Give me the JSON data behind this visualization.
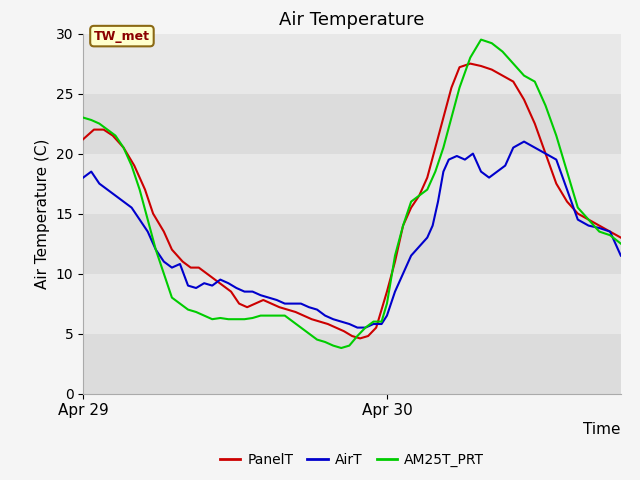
{
  "title": "Air Temperature",
  "ylabel": "Air Temperature (C)",
  "xlabel": "Time",
  "ylim": [
    0,
    30
  ],
  "yticks": [
    0,
    5,
    10,
    15,
    20,
    25,
    30
  ],
  "xtick_labels": [
    "Apr 29",
    "Apr 30"
  ],
  "xtick_positions": [
    0.0,
    0.565
  ],
  "annotation_label": "TW_met",
  "fig_bg_color": "#f5f5f5",
  "plot_bg_color": "#e8e8e8",
  "band_colors": [
    "#dcdcdc",
    "#e8e8e8"
  ],
  "colors": {
    "PanelT": "#cc0000",
    "AirT": "#0000cc",
    "AM25T_PRT": "#00cc00"
  },
  "PanelT_x": [
    0.0,
    0.02,
    0.038,
    0.055,
    0.075,
    0.095,
    0.115,
    0.13,
    0.15,
    0.165,
    0.185,
    0.2,
    0.215,
    0.23,
    0.245,
    0.26,
    0.275,
    0.29,
    0.305,
    0.32,
    0.335,
    0.35,
    0.365,
    0.38,
    0.395,
    0.41,
    0.425,
    0.44,
    0.455,
    0.47,
    0.485,
    0.5,
    0.515,
    0.53,
    0.545,
    0.565,
    0.58,
    0.595,
    0.61,
    0.625,
    0.64,
    0.655,
    0.67,
    0.685,
    0.7,
    0.72,
    0.74,
    0.76,
    0.78,
    0.8,
    0.82,
    0.84,
    0.86,
    0.88,
    0.9,
    0.92,
    0.94,
    0.96,
    0.98,
    1.0
  ],
  "PanelT_y": [
    21.2,
    22.0,
    22.0,
    21.5,
    20.5,
    19.0,
    17.0,
    15.0,
    13.5,
    12.0,
    11.0,
    10.5,
    10.5,
    10.0,
    9.5,
    9.0,
    8.5,
    7.5,
    7.2,
    7.5,
    7.8,
    7.5,
    7.2,
    7.0,
    6.8,
    6.5,
    6.2,
    6.0,
    5.8,
    5.5,
    5.2,
    4.8,
    4.6,
    4.8,
    5.5,
    8.5,
    11.0,
    14.0,
    15.5,
    16.5,
    18.0,
    20.5,
    23.0,
    25.5,
    27.2,
    27.5,
    27.3,
    27.0,
    26.5,
    26.0,
    24.5,
    22.5,
    20.0,
    17.5,
    16.0,
    15.0,
    14.5,
    14.0,
    13.5,
    13.0
  ],
  "AirT_x": [
    0.0,
    0.015,
    0.03,
    0.045,
    0.06,
    0.075,
    0.09,
    0.105,
    0.12,
    0.135,
    0.15,
    0.165,
    0.18,
    0.195,
    0.21,
    0.225,
    0.24,
    0.255,
    0.27,
    0.285,
    0.3,
    0.315,
    0.33,
    0.345,
    0.36,
    0.375,
    0.39,
    0.405,
    0.42,
    0.435,
    0.45,
    0.465,
    0.48,
    0.495,
    0.51,
    0.525,
    0.54,
    0.555,
    0.565,
    0.58,
    0.59,
    0.6,
    0.61,
    0.62,
    0.63,
    0.64,
    0.65,
    0.66,
    0.67,
    0.68,
    0.695,
    0.71,
    0.725,
    0.74,
    0.755,
    0.77,
    0.785,
    0.8,
    0.82,
    0.84,
    0.86,
    0.88,
    0.9,
    0.92,
    0.94,
    0.96,
    0.98,
    1.0
  ],
  "AirT_y": [
    18.0,
    18.5,
    17.5,
    17.0,
    16.5,
    16.0,
    15.5,
    14.5,
    13.5,
    12.0,
    11.0,
    10.5,
    10.8,
    9.0,
    8.8,
    9.2,
    9.0,
    9.5,
    9.2,
    8.8,
    8.5,
    8.5,
    8.2,
    8.0,
    7.8,
    7.5,
    7.5,
    7.5,
    7.2,
    7.0,
    6.5,
    6.2,
    6.0,
    5.8,
    5.5,
    5.5,
    5.8,
    5.8,
    6.5,
    8.5,
    9.5,
    10.5,
    11.5,
    12.0,
    12.5,
    13.0,
    14.0,
    16.0,
    18.5,
    19.5,
    19.8,
    19.5,
    20.0,
    18.5,
    18.0,
    18.5,
    19.0,
    20.5,
    21.0,
    20.5,
    20.0,
    19.5,
    17.0,
    14.5,
    14.0,
    13.8,
    13.5,
    11.5
  ],
  "AM25T_x": [
    0.0,
    0.015,
    0.03,
    0.045,
    0.06,
    0.075,
    0.09,
    0.105,
    0.12,
    0.135,
    0.15,
    0.165,
    0.18,
    0.195,
    0.21,
    0.225,
    0.24,
    0.255,
    0.27,
    0.285,
    0.3,
    0.315,
    0.33,
    0.345,
    0.36,
    0.375,
    0.39,
    0.405,
    0.42,
    0.435,
    0.45,
    0.465,
    0.48,
    0.495,
    0.51,
    0.525,
    0.54,
    0.555,
    0.565,
    0.58,
    0.595,
    0.61,
    0.625,
    0.64,
    0.655,
    0.67,
    0.685,
    0.7,
    0.72,
    0.74,
    0.76,
    0.78,
    0.8,
    0.82,
    0.84,
    0.86,
    0.88,
    0.9,
    0.92,
    0.94,
    0.96,
    0.98,
    1.0
  ],
  "AM25T_y": [
    23.0,
    22.8,
    22.5,
    22.0,
    21.5,
    20.5,
    19.0,
    17.0,
    14.5,
    12.0,
    10.0,
    8.0,
    7.5,
    7.0,
    6.8,
    6.5,
    6.2,
    6.3,
    6.2,
    6.2,
    6.2,
    6.3,
    6.5,
    6.5,
    6.5,
    6.5,
    6.0,
    5.5,
    5.0,
    4.5,
    4.3,
    4.0,
    3.8,
    4.0,
    4.8,
    5.5,
    6.0,
    6.0,
    7.5,
    11.5,
    14.0,
    16.0,
    16.5,
    17.0,
    18.5,
    20.5,
    23.0,
    25.5,
    28.0,
    29.5,
    29.2,
    28.5,
    27.5,
    26.5,
    26.0,
    24.0,
    21.5,
    18.5,
    15.5,
    14.5,
    13.5,
    13.2,
    12.5
  ]
}
